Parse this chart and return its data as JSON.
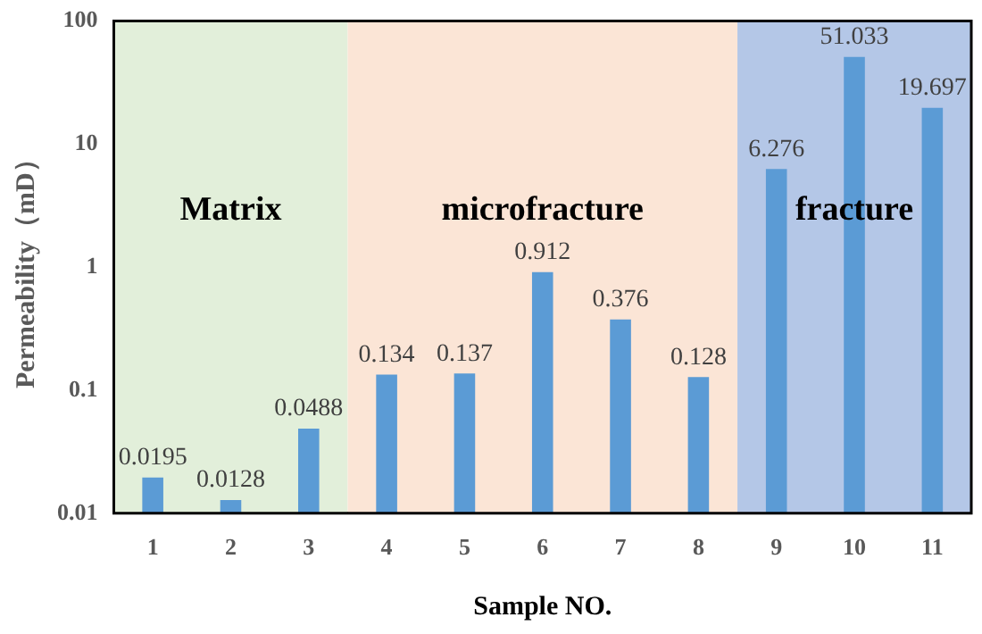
{
  "chart_data": {
    "type": "bar",
    "xlabel": "Sample NO.",
    "ylabel": "Permeability（mD）",
    "categories": [
      "1",
      "2",
      "3",
      "4",
      "5",
      "6",
      "7",
      "8",
      "9",
      "10",
      "11"
    ],
    "values": [
      0.0195,
      0.0128,
      0.0488,
      0.134,
      0.137,
      0.912,
      0.376,
      0.128,
      6.276,
      51.033,
      19.697
    ],
    "color": "#5b9bd5",
    "log": "y",
    "ylim": [
      0.01,
      100
    ],
    "yticks": [
      0.01,
      0.1,
      1,
      10,
      100
    ],
    "grid": false,
    "legend": false,
    "data_labels": true,
    "bands": [
      {
        "axis": "x",
        "from": "1",
        "to": "3",
        "label": "Matrix",
        "color": "#e2efda"
      },
      {
        "axis": "x",
        "from": "4",
        "to": "8",
        "label": "microfracture",
        "color": "#fbe5d6"
      },
      {
        "axis": "x",
        "from": "9",
        "to": "11",
        "label": "fracture",
        "color": "#b4c7e7"
      }
    ]
  }
}
